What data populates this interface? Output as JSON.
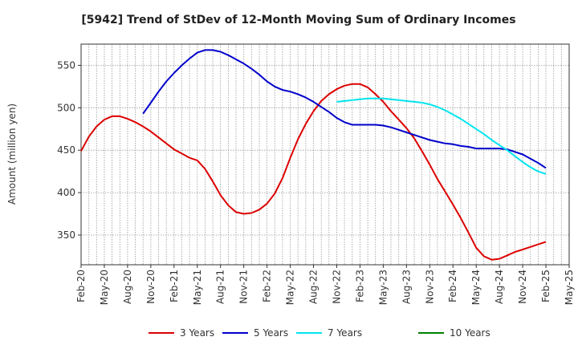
{
  "chart_data": {
    "type": "line",
    "title": "[5942]  Trend of StDev of 12-Month Moving Sum of Ordinary Incomes",
    "ylabel": "Amount (million yen)",
    "xlabel": "",
    "ylim": [
      315,
      575
    ],
    "yticks": [
      350,
      400,
      450,
      500,
      550
    ],
    "x_range": [
      "2020-02",
      "2025-05"
    ],
    "xticks": [
      "Feb-20",
      "May-20",
      "Aug-20",
      "Nov-20",
      "Feb-21",
      "May-21",
      "Aug-21",
      "Nov-21",
      "Feb-22",
      "May-22",
      "Aug-22",
      "Nov-22",
      "Feb-23",
      "May-23",
      "Aug-23",
      "Nov-23",
      "Feb-24",
      "May-24",
      "Aug-24",
      "Nov-24",
      "Feb-25",
      "May-25"
    ],
    "grid": true,
    "legend_position": "bottom",
    "series": [
      {
        "name": "3 Years",
        "color": "#dd0000",
        "points": [
          [
            "2020-02",
            449
          ],
          [
            "2020-03",
            466
          ],
          [
            "2020-04",
            478
          ],
          [
            "2020-05",
            486
          ],
          [
            "2020-06",
            490
          ],
          [
            "2020-07",
            490
          ],
          [
            "2020-08",
            487
          ],
          [
            "2020-09",
            483
          ],
          [
            "2020-10",
            478
          ],
          [
            "2020-11",
            472
          ],
          [
            "2020-12",
            465
          ],
          [
            "2021-01",
            458
          ],
          [
            "2021-02",
            451
          ],
          [
            "2021-03",
            446
          ],
          [
            "2021-04",
            441
          ],
          [
            "2021-05",
            438
          ],
          [
            "2021-06",
            428
          ],
          [
            "2021-07",
            413
          ],
          [
            "2021-08",
            397
          ],
          [
            "2021-09",
            385
          ],
          [
            "2021-10",
            377
          ],
          [
            "2021-11",
            375
          ],
          [
            "2021-12",
            376
          ],
          [
            "2022-01",
            380
          ],
          [
            "2022-02",
            387
          ],
          [
            "2022-03",
            399
          ],
          [
            "2022-04",
            417
          ],
          [
            "2022-05",
            441
          ],
          [
            "2022-06",
            463
          ],
          [
            "2022-07",
            481
          ],
          [
            "2022-08",
            496
          ],
          [
            "2022-09",
            508
          ],
          [
            "2022-10",
            516
          ],
          [
            "2022-11",
            522
          ],
          [
            "2022-12",
            526
          ],
          [
            "2023-01",
            528
          ],
          [
            "2023-02",
            528
          ],
          [
            "2023-03",
            524
          ],
          [
            "2023-04",
            516
          ],
          [
            "2023-05",
            507
          ],
          [
            "2023-06",
            496
          ],
          [
            "2023-07",
            486
          ],
          [
            "2023-08",
            476
          ],
          [
            "2023-09",
            464
          ],
          [
            "2023-10",
            449
          ],
          [
            "2023-11",
            433
          ],
          [
            "2023-12",
            416
          ],
          [
            "2024-01",
            401
          ],
          [
            "2024-02",
            386
          ],
          [
            "2024-03",
            370
          ],
          [
            "2024-04",
            353
          ],
          [
            "2024-05",
            335
          ],
          [
            "2024-06",
            325
          ],
          [
            "2024-07",
            321
          ],
          [
            "2024-08",
            322
          ],
          [
            "2024-09",
            326
          ],
          [
            "2024-10",
            330
          ],
          [
            "2024-11",
            333
          ],
          [
            "2024-12",
            336
          ],
          [
            "2025-01",
            339
          ],
          [
            "2025-02",
            342
          ]
        ]
      },
      {
        "name": "5 Years",
        "color": "#0000cc",
        "points": [
          [
            "2020-10",
            493
          ],
          [
            "2020-11",
            506
          ],
          [
            "2020-12",
            519
          ],
          [
            "2021-01",
            531
          ],
          [
            "2021-02",
            541
          ],
          [
            "2021-03",
            550
          ],
          [
            "2021-04",
            558
          ],
          [
            "2021-05",
            565
          ],
          [
            "2021-06",
            568
          ],
          [
            "2021-07",
            568
          ],
          [
            "2021-08",
            566
          ],
          [
            "2021-09",
            562
          ],
          [
            "2021-10",
            557
          ],
          [
            "2021-11",
            552
          ],
          [
            "2021-12",
            546
          ],
          [
            "2022-01",
            539
          ],
          [
            "2022-02",
            531
          ],
          [
            "2022-03",
            525
          ],
          [
            "2022-04",
            521
          ],
          [
            "2022-05",
            519
          ],
          [
            "2022-06",
            516
          ],
          [
            "2022-07",
            512
          ],
          [
            "2022-08",
            507
          ],
          [
            "2022-09",
            501
          ],
          [
            "2022-10",
            495
          ],
          [
            "2022-11",
            488
          ],
          [
            "2022-12",
            483
          ],
          [
            "2023-01",
            480
          ],
          [
            "2023-02",
            480
          ],
          [
            "2023-03",
            480
          ],
          [
            "2023-04",
            480
          ],
          [
            "2023-05",
            479
          ],
          [
            "2023-06",
            477
          ],
          [
            "2023-07",
            474
          ],
          [
            "2023-08",
            471
          ],
          [
            "2023-09",
            468
          ],
          [
            "2023-10",
            465
          ],
          [
            "2023-11",
            462
          ],
          [
            "2023-12",
            460
          ],
          [
            "2024-01",
            458
          ],
          [
            "2024-02",
            457
          ],
          [
            "2024-03",
            455
          ],
          [
            "2024-04",
            454
          ],
          [
            "2024-05",
            452
          ],
          [
            "2024-06",
            452
          ],
          [
            "2024-07",
            452
          ],
          [
            "2024-08",
            452
          ],
          [
            "2024-09",
            451
          ],
          [
            "2024-10",
            448
          ],
          [
            "2024-11",
            445
          ],
          [
            "2024-12",
            440
          ],
          [
            "2025-01",
            435
          ],
          [
            "2025-02",
            429
          ]
        ]
      },
      {
        "name": "7 Years",
        "color": "#00e5ee",
        "points": [
          [
            "2022-11",
            507
          ],
          [
            "2022-12",
            508
          ],
          [
            "2023-01",
            509
          ],
          [
            "2023-02",
            510
          ],
          [
            "2023-03",
            511
          ],
          [
            "2023-04",
            511
          ],
          [
            "2023-05",
            511
          ],
          [
            "2023-06",
            510
          ],
          [
            "2023-07",
            509
          ],
          [
            "2023-08",
            508
          ],
          [
            "2023-09",
            507
          ],
          [
            "2023-10",
            506
          ],
          [
            "2023-11",
            504
          ],
          [
            "2023-12",
            501
          ],
          [
            "2024-01",
            497
          ],
          [
            "2024-02",
            492
          ],
          [
            "2024-03",
            487
          ],
          [
            "2024-04",
            481
          ],
          [
            "2024-05",
            475
          ],
          [
            "2024-06",
            469
          ],
          [
            "2024-07",
            462
          ],
          [
            "2024-08",
            456
          ],
          [
            "2024-09",
            450
          ],
          [
            "2024-10",
            443
          ],
          [
            "2024-11",
            436
          ],
          [
            "2024-12",
            430
          ],
          [
            "2025-01",
            425
          ],
          [
            "2025-02",
            422
          ]
        ]
      },
      {
        "name": "10 Years",
        "color": "#008000",
        "points": []
      }
    ]
  }
}
